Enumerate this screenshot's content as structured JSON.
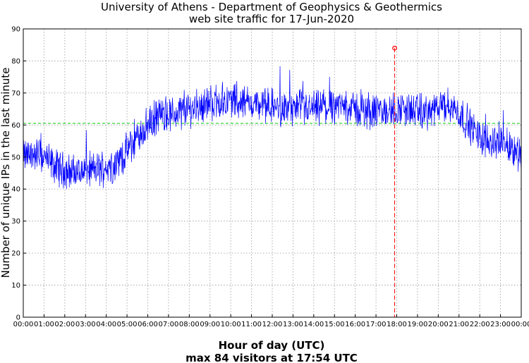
{
  "chart_data": {
    "type": "line",
    "title": "University of Athens - Department of Geophysics & Geothermics",
    "subtitle": "web site traffic for 17-Jun-2020",
    "xlabel": "Hour of day (UTC)",
    "footer": "max 84 visitors at 17:54 UTC",
    "ylabel": "Number of unique IPs in the last minute",
    "xlim": [
      0,
      24
    ],
    "ylim": [
      0,
      90
    ],
    "x_ticks": [
      0,
      1,
      2,
      3,
      4,
      5,
      6,
      7,
      8,
      9,
      10,
      11,
      12,
      13,
      14,
      15,
      16,
      17,
      18,
      19,
      20,
      21,
      22,
      23,
      24
    ],
    "x_tick_labels": [
      "00:00",
      "01:00",
      "02:00",
      "03:00",
      "04:00",
      "05:00",
      "06:00",
      "07:00",
      "08:00",
      "09:00",
      "10:00",
      "11:00",
      "12:00",
      "13:00",
      "14:00",
      "15:00",
      "16:00",
      "17:00",
      "18:00",
      "19:00",
      "20:00",
      "21:00",
      "22:00",
      "23:00",
      "00:00"
    ],
    "y_ticks": [
      0,
      10,
      20,
      30,
      40,
      50,
      60,
      70,
      80,
      90
    ],
    "y_tick_labels": [
      "0",
      "10",
      "20",
      "30",
      "40",
      "50",
      "60",
      "70",
      "80",
      "90"
    ],
    "grid": true,
    "colors": {
      "series": "#0000ff",
      "mean_line": "#00cc00",
      "max_marker": "#ff0000"
    },
    "mean_value": 60.5,
    "max_point": {
      "x": 17.9,
      "y": 84
    },
    "series_envelope": {
      "x": [
        0,
        0.5,
        1,
        1.5,
        2,
        2.5,
        3,
        3.5,
        4,
        4.5,
        5,
        5.5,
        6,
        6.5,
        7,
        7.5,
        8,
        8.5,
        9,
        9.5,
        10,
        10.5,
        11,
        11.5,
        12,
        12.5,
        13,
        13.5,
        14,
        14.5,
        15,
        15.5,
        16,
        16.5,
        17,
        17.5,
        18,
        18.5,
        19,
        19.5,
        20,
        20.5,
        21,
        21.5,
        22,
        22.5,
        23,
        23.5,
        24
      ],
      "y": [
        50,
        51,
        50,
        47,
        46,
        45,
        46,
        46,
        47,
        48,
        52,
        56,
        60,
        63,
        63,
        64,
        65,
        66,
        67,
        67,
        68,
        67,
        67,
        66,
        66,
        65,
        65,
        65,
        65,
        65,
        66,
        66,
        65,
        64,
        64,
        64,
        65,
        65,
        64,
        64,
        65,
        66,
        64,
        60,
        56,
        55,
        55,
        53,
        51
      ]
    }
  }
}
